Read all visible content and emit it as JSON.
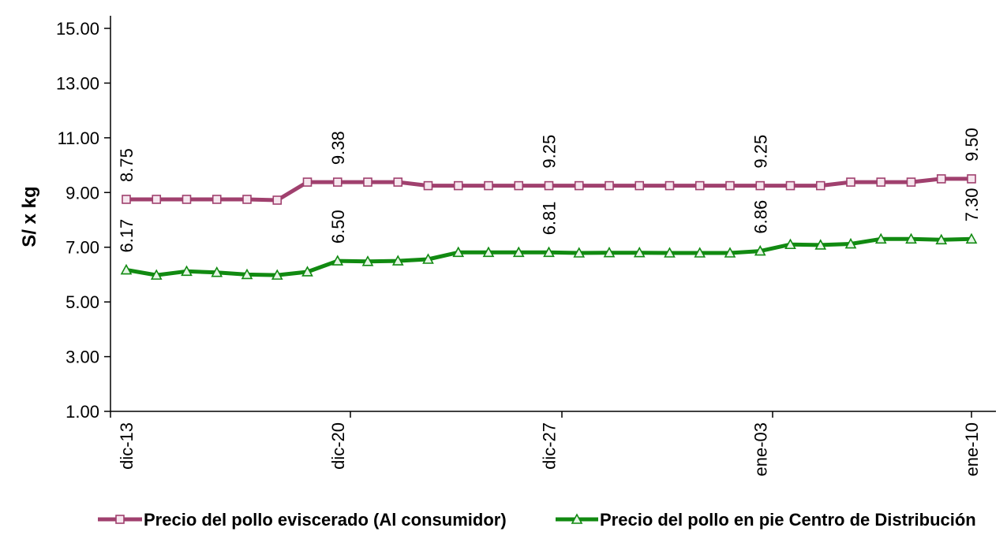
{
  "chart_data": {
    "type": "line",
    "ylabel": "S/ x kg",
    "xlabel": "",
    "ylim": [
      1.0,
      15.0
    ],
    "y_ticks": [
      "1.00",
      "3.00",
      "5.00",
      "7.00",
      "9.00",
      "11.00",
      "13.00",
      "15.00"
    ],
    "y_tick_values": [
      1,
      3,
      5,
      7,
      9,
      11,
      13,
      15
    ],
    "x_range": [
      0,
      28
    ],
    "x_ticks": [
      {
        "label": "dic-13",
        "x": 0
      },
      {
        "label": "dic-20",
        "x": 7
      },
      {
        "label": "dic-27",
        "x": 14
      },
      {
        "label": "ene-03",
        "x": 21
      },
      {
        "label": "ene-10",
        "x": 28
      }
    ],
    "grid": false,
    "legend_position": "bottom",
    "series": [
      {
        "name": "Precio del pollo eviscerado (Al consumidor)",
        "color": "#a0406e",
        "marker": "square",
        "x": [
          0,
          1,
          2,
          3,
          4,
          5,
          6,
          7,
          8,
          9,
          10,
          11,
          12,
          13,
          14,
          15,
          16,
          17,
          18,
          19,
          20,
          21,
          22,
          23,
          24,
          25,
          26,
          27,
          28
        ],
        "values": [
          8.75,
          8.75,
          8.75,
          8.75,
          8.75,
          8.72,
          9.38,
          9.38,
          9.38,
          9.38,
          9.25,
          9.25,
          9.25,
          9.25,
          9.25,
          9.25,
          9.25,
          9.25,
          9.25,
          9.25,
          9.25,
          9.25,
          9.25,
          9.25,
          9.38,
          9.38,
          9.38,
          9.5,
          9.5
        ],
        "labels": [
          {
            "x": 0,
            "text": "8.75"
          },
          {
            "x": 7,
            "text": "9.38"
          },
          {
            "x": 14,
            "text": "9.25"
          },
          {
            "x": 21,
            "text": "9.25"
          },
          {
            "x": 28,
            "text": "9.50"
          }
        ]
      },
      {
        "name": "Precio del pollo en pie Centro de Distribución",
        "color": "#118a11",
        "marker": "triangle",
        "x": [
          0,
          1,
          2,
          3,
          4,
          5,
          6,
          7,
          8,
          9,
          10,
          11,
          12,
          13,
          14,
          15,
          16,
          17,
          18,
          19,
          20,
          21,
          22,
          23,
          24,
          25,
          26,
          27,
          28
        ],
        "values": [
          6.17,
          5.98,
          6.12,
          6.08,
          6.0,
          5.98,
          6.1,
          6.5,
          6.48,
          6.5,
          6.56,
          6.81,
          6.81,
          6.81,
          6.81,
          6.79,
          6.8,
          6.8,
          6.79,
          6.79,
          6.79,
          6.86,
          7.1,
          7.08,
          7.12,
          7.3,
          7.3,
          7.27,
          7.3
        ],
        "labels": [
          {
            "x": 0,
            "text": "6.17"
          },
          {
            "x": 7,
            "text": "6.50"
          },
          {
            "x": 14,
            "text": "6.81"
          },
          {
            "x": 21,
            "text": "6.86"
          },
          {
            "x": 28,
            "text": "7.30"
          }
        ]
      }
    ]
  }
}
